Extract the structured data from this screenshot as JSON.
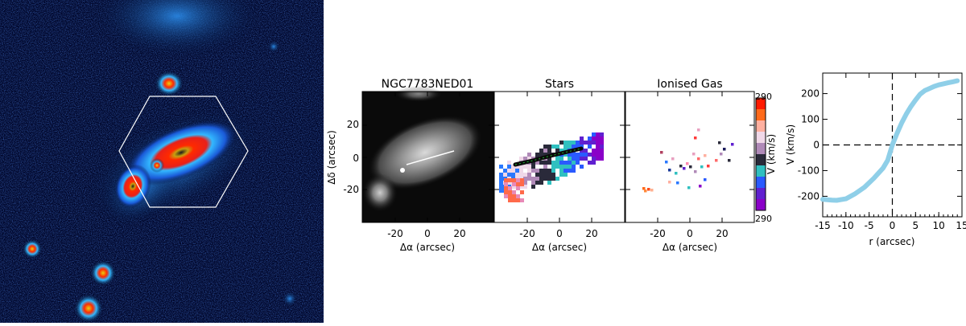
{
  "figure": {
    "panels": [
      {
        "title": "NGC7783NED01"
      },
      {
        "title": "Stars"
      },
      {
        "title": "Ionised Gas"
      }
    ],
    "map_axes": {
      "xlabel": "Δα (arcsec)",
      "xlabel_spaced": "Δα  (arcsec)",
      "ylabel": "Δδ (arcsec)",
      "xticks": [
        "-20",
        "0",
        "20"
      ],
      "yticks": [
        "20",
        "0",
        "-20"
      ]
    },
    "colorbar": {
      "top": "290",
      "bottom": "290",
      "label": "V (km/s)",
      "colors": [
        "#ff1a00",
        "#ff6a1a",
        "#ffb0a0",
        "#f0d8e8",
        "#b08ab8",
        "#2a2a3a",
        "#30c0c0",
        "#2a5aff",
        "#6020d0",
        "#8a00c8"
      ]
    }
  },
  "chart_data": {
    "type": "line",
    "title": "",
    "xlabel": "r (arcsec)",
    "ylabel": "V (km/s)",
    "xlim": [
      -15,
      15
    ],
    "ylim": [
      -280,
      280
    ],
    "xticks": [
      "-15",
      "-10",
      "-5",
      "0",
      "5",
      "10",
      "15"
    ],
    "yticks": [
      "200",
      "100",
      "0",
      "-100",
      "-200"
    ],
    "color": "#8fcfe8",
    "x": [
      -15,
      -13,
      -12,
      -10,
      -8,
      -6,
      -4,
      -2,
      -1,
      0,
      1,
      2,
      3,
      4,
      5,
      6,
      7,
      8,
      9,
      10,
      11,
      12,
      13,
      14
    ],
    "y": [
      -212,
      -215,
      -216,
      -210,
      -190,
      -165,
      -130,
      -90,
      -60,
      0,
      45,
      85,
      120,
      150,
      175,
      198,
      212,
      220,
      228,
      234,
      238,
      242,
      246,
      250
    ]
  }
}
